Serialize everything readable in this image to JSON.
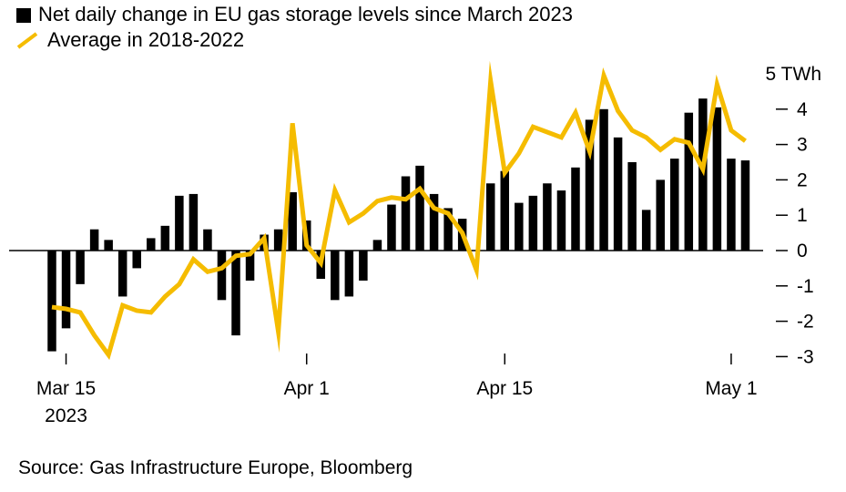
{
  "legend": {
    "bars_label": "Net daily change in EU gas storage levels since March 2023",
    "line_label": "Average in 2018-2022"
  },
  "source": "Source: Gas Infrastructure Europe, Bloomberg",
  "colors": {
    "bars": "#000000",
    "line": "#F5BC00",
    "axis": "#000000"
  },
  "chart_data": {
    "type": "bar",
    "title": "",
    "xlabel": "",
    "ylabel": "",
    "y_unit_label": "5 TWh",
    "ylim": [
      -3.2,
      5
    ],
    "yticks": [
      4,
      3,
      2,
      1,
      0,
      -1,
      -2,
      -3
    ],
    "ytick_labels": [
      "4",
      "3",
      "2",
      "1",
      "0",
      "-1",
      "-2",
      "-3"
    ],
    "xticks": [
      {
        "index": 1,
        "label": "Mar 15",
        "sublabel": "2023"
      },
      {
        "index": 18,
        "label": "Apr 1",
        "sublabel": ""
      },
      {
        "index": 32,
        "label": "Apr 15",
        "sublabel": ""
      },
      {
        "index": 48,
        "label": "May 1",
        "sublabel": ""
      }
    ],
    "series": [
      {
        "name": "Net daily change in EU gas storage levels since March 2023",
        "type": "bar",
        "values": [
          -2.85,
          -2.2,
          -0.95,
          0.6,
          0.3,
          -1.3,
          -0.5,
          0.35,
          0.7,
          1.55,
          1.6,
          0.6,
          -1.4,
          -2.4,
          -0.85,
          0.45,
          0.6,
          1.65,
          0.85,
          -0.8,
          -1.4,
          -1.3,
          -0.85,
          0.3,
          1.3,
          2.1,
          2.4,
          1.6,
          1.2,
          0.9,
          0,
          1.9,
          2.25,
          1.35,
          1.55,
          1.9,
          1.7,
          2.35,
          3.7,
          4.0,
          3.2,
          2.5,
          1.15,
          2.0,
          2.6,
          3.9,
          4.3,
          4.05,
          2.6,
          2.55
        ]
      },
      {
        "name": "Average in 2018-2022",
        "type": "line",
        "values": [
          -1.6,
          -1.65,
          -1.75,
          -2.4,
          -2.95,
          -1.55,
          -1.7,
          -1.75,
          -1.3,
          -0.95,
          -0.25,
          -0.6,
          -0.5,
          -0.15,
          -0.1,
          0.35,
          -2.3,
          3.6,
          0.15,
          -0.35,
          1.7,
          0.8,
          1.05,
          1.4,
          1.5,
          1.45,
          1.75,
          1.2,
          1.05,
          0.5,
          -0.55,
          4.8,
          2.2,
          2.75,
          3.5,
          3.35,
          3.2,
          3.9,
          2.8,
          4.95,
          3.95,
          3.4,
          3.2,
          2.85,
          3.15,
          3.05,
          2.3,
          4.7,
          3.4,
          3.1
        ]
      }
    ],
    "grid": false,
    "legend_position": "top-left"
  }
}
